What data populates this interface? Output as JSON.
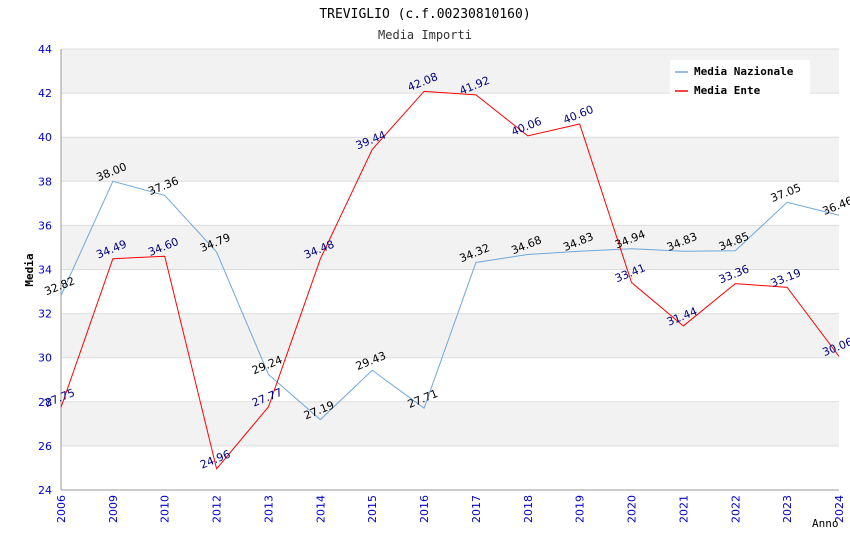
{
  "chart_data": {
    "type": "line",
    "title": "TREVIGLIO (c.f.00230810160)",
    "subtitle": "Media Importi",
    "xlabel": "Anno",
    "ylabel": "Media",
    "ylim": [
      24,
      44
    ],
    "yticks": [
      24,
      26,
      28,
      30,
      32,
      34,
      36,
      38,
      40,
      42,
      44
    ],
    "grid": true,
    "legend_position": "top-right",
    "categories": [
      "2006",
      "2009",
      "2010",
      "2012",
      "2013",
      "2014",
      "2015",
      "2016",
      "2017",
      "2018",
      "2019",
      "2020",
      "2021",
      "2022",
      "2023",
      "2024"
    ],
    "series": [
      {
        "name": "Media Nazionale",
        "color": "#6fa8dc",
        "label_color": "#000000",
        "values": [
          32.82,
          38.0,
          37.36,
          34.79,
          29.24,
          27.19,
          29.43,
          27.71,
          34.32,
          34.68,
          34.83,
          34.94,
          34.83,
          34.85,
          37.05,
          36.46
        ],
        "labels": [
          "32.82",
          "38.00",
          "37.36",
          "34.79",
          "29.24",
          "27.19",
          "29.43",
          "27.71",
          "34.32",
          "34.68",
          "34.83",
          "34.94",
          "34.83",
          "34.85",
          "37.05",
          "36.46"
        ]
      },
      {
        "name": "Media Ente",
        "color": "#ff0000",
        "label_color": "#000080",
        "values": [
          27.75,
          34.49,
          34.6,
          24.96,
          27.77,
          34.48,
          39.44,
          42.08,
          41.92,
          40.06,
          40.6,
          33.41,
          31.44,
          33.36,
          33.19,
          30.06
        ],
        "labels": [
          "27.75",
          "34.49",
          "34.60",
          "24.96",
          "27.77",
          "34.48",
          "39.44",
          "42.08",
          "41.92",
          "40.06",
          "40.60",
          "33.41",
          "31.44",
          "33.36",
          "33.19",
          "30.06"
        ]
      }
    ]
  }
}
